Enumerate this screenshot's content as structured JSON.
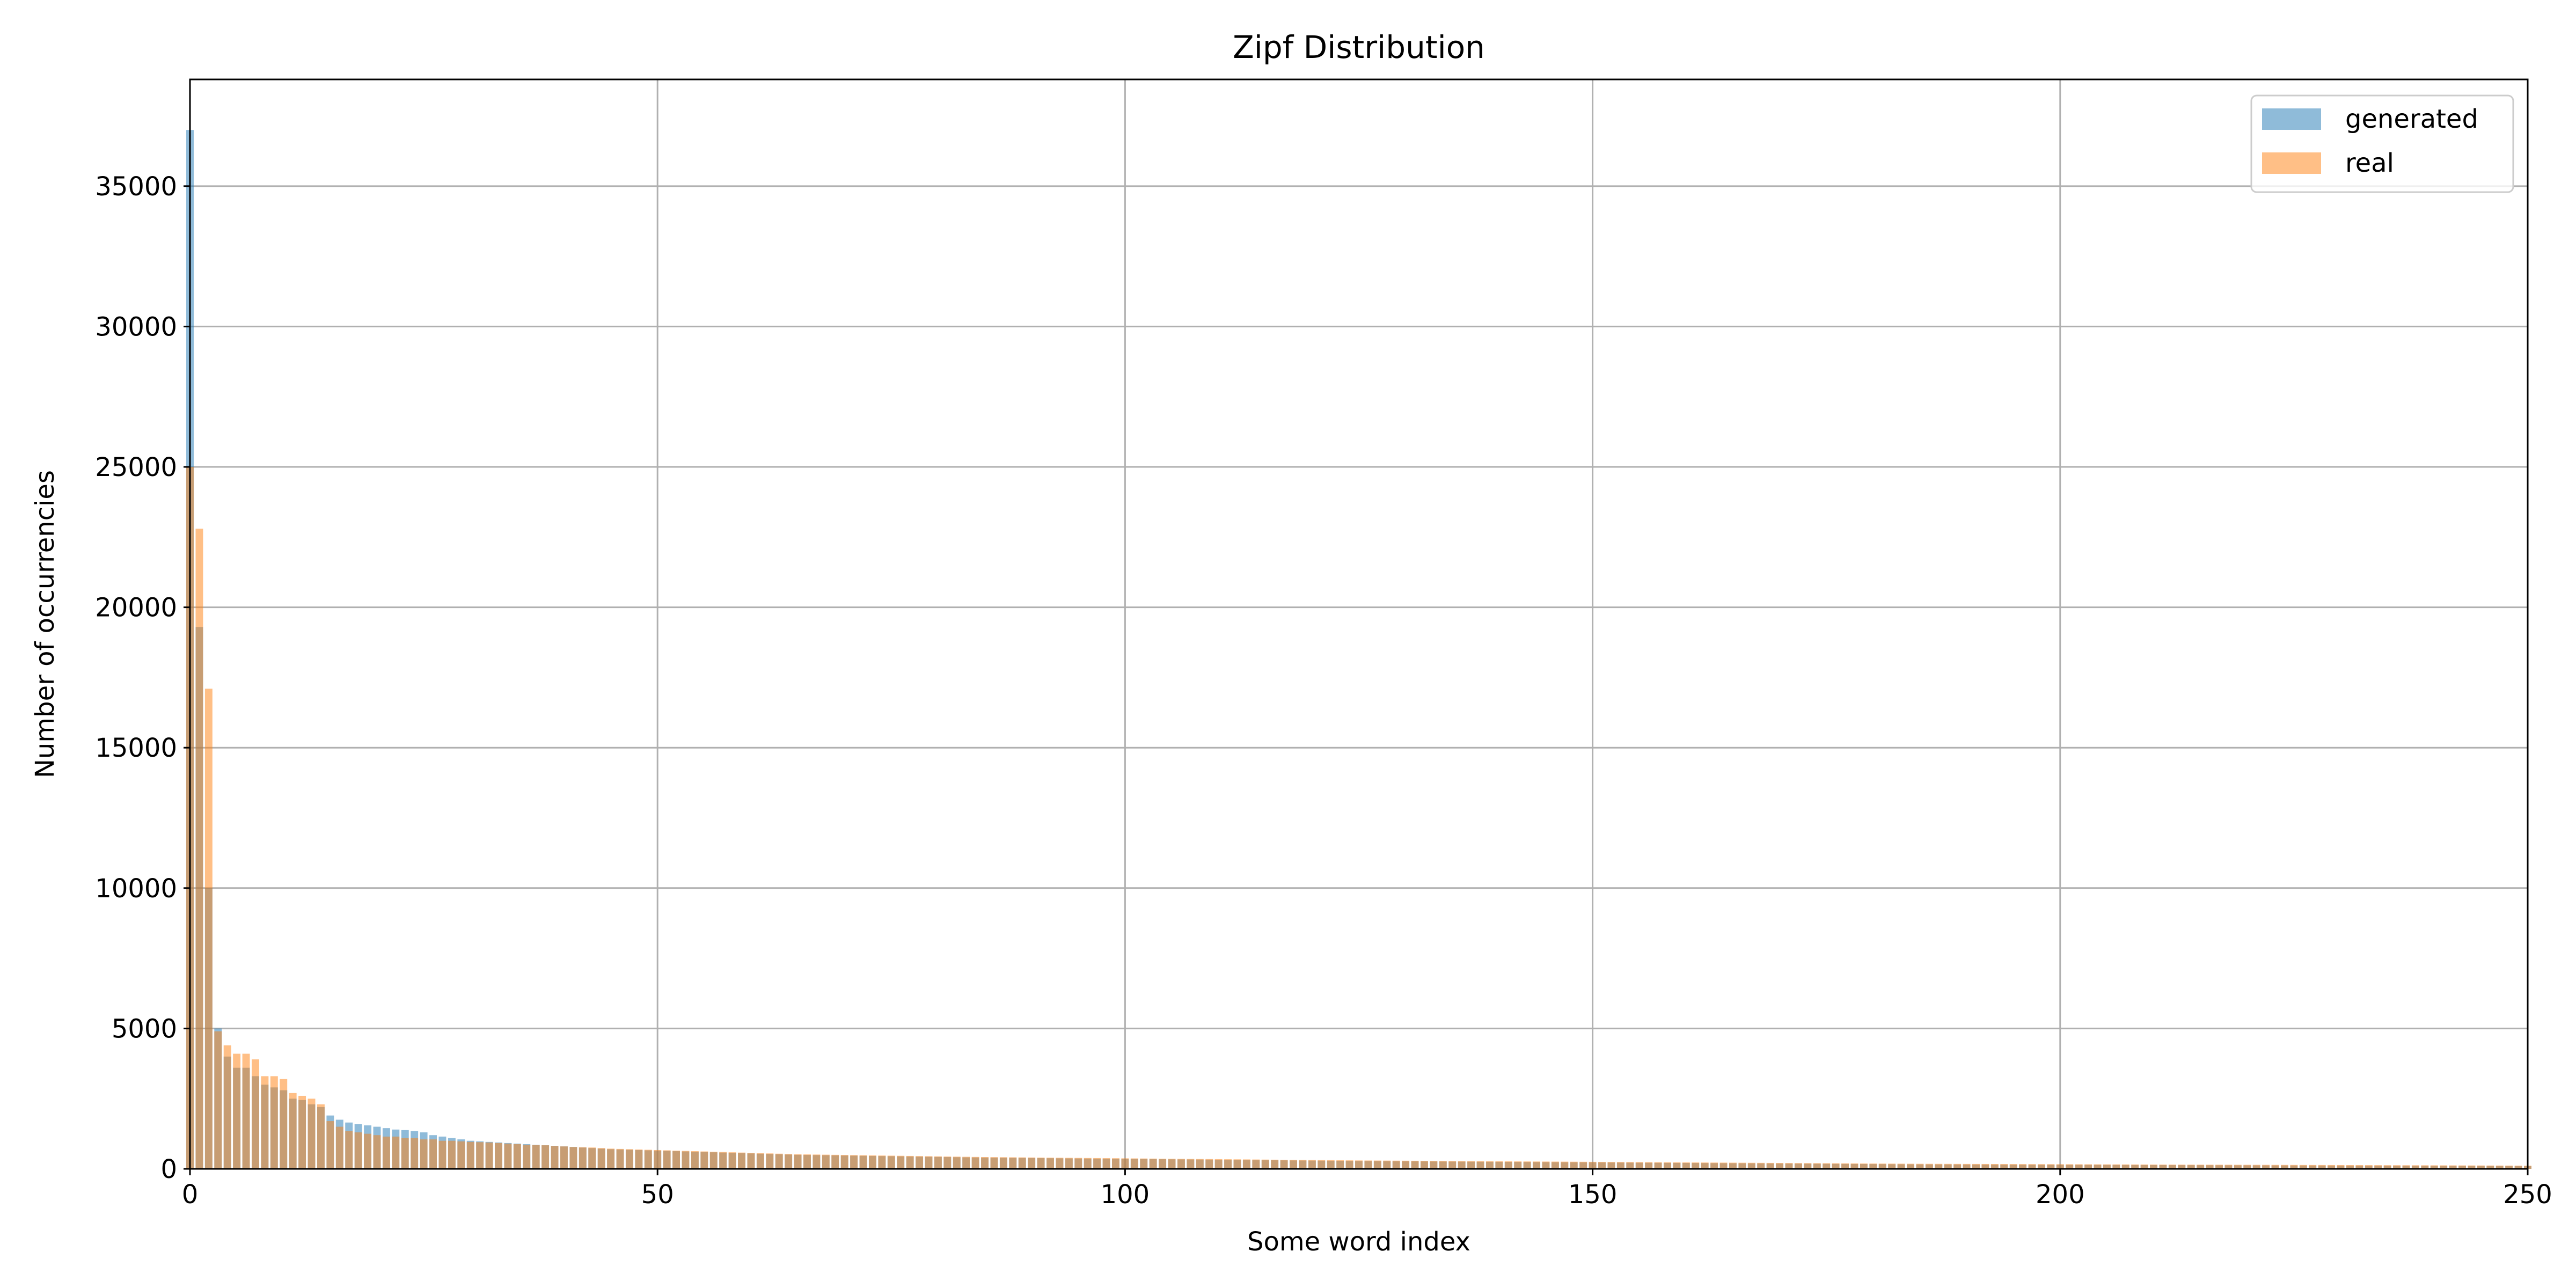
{
  "chart_data": {
    "type": "bar",
    "title": "Zipf Distribution",
    "xlabel": "Some word index",
    "ylabel": "Number of occurrencies",
    "xlim": [
      0,
      250
    ],
    "ylim": [
      0,
      38800
    ],
    "xticks": [
      0,
      50,
      100,
      150,
      200,
      250
    ],
    "yticks": [
      0,
      5000,
      10000,
      15000,
      20000,
      25000,
      30000,
      35000
    ],
    "grid": true,
    "legend_position": "top-right",
    "series": [
      {
        "name": "generated",
        "color": "#1f77b4",
        "opacity": 0.5,
        "values": [
          37000,
          19300,
          10000,
          5000,
          4000,
          3600,
          3600,
          3300,
          3000,
          2900,
          2800,
          2500,
          2450,
          2300,
          2200,
          1900,
          1750,
          1650,
          1600,
          1550,
          1500,
          1450,
          1400,
          1380,
          1350,
          1300,
          1200,
          1150,
          1100,
          1050,
          1000,
          980,
          960,
          940,
          920,
          900,
          880,
          860,
          840,
          820,
          800,
          780,
          760,
          740,
          720,
          700,
          690,
          680,
          670,
          660,
          650,
          640,
          630,
          620,
          610,
          600,
          590,
          580,
          570,
          560,
          550,
          540,
          530,
          520,
          510,
          500,
          495,
          490,
          485,
          480,
          475,
          470,
          465,
          460,
          455,
          450,
          445,
          440,
          435,
          430,
          425,
          420,
          415,
          410,
          405,
          400,
          397,
          394,
          391,
          388,
          385,
          382,
          379,
          376,
          373,
          370,
          367,
          364,
          361,
          358,
          355,
          352,
          349,
          346,
          343,
          340,
          337,
          334,
          331,
          328,
          325,
          322,
          319,
          316,
          313,
          310,
          307,
          304,
          301,
          298,
          295,
          292,
          289,
          286,
          283,
          280,
          278,
          276,
          274,
          272,
          270,
          268,
          266,
          264,
          262,
          260,
          258,
          256,
          254,
          252,
          250,
          248,
          246,
          244,
          242,
          240,
          238,
          236,
          234,
          232,
          230,
          228,
          226,
          224,
          222,
          220,
          218,
          216,
          214,
          212,
          210,
          208,
          206,
          204,
          202,
          200,
          198,
          196,
          194,
          192,
          190,
          188,
          186,
          184,
          182,
          180,
          178,
          176,
          174,
          172,
          170,
          168,
          166,
          164,
          162,
          160,
          159,
          158,
          157,
          156,
          155,
          154,
          153,
          152,
          151,
          150,
          149,
          148,
          147,
          146,
          145,
          144,
          143,
          142,
          141,
          140,
          139,
          138,
          137,
          136,
          135,
          134,
          133,
          132,
          131,
          130,
          129,
          128,
          127,
          126,
          125,
          124,
          123,
          122,
          121,
          120,
          119,
          118,
          117,
          116,
          115,
          114,
          113,
          112,
          111,
          110,
          109,
          108,
          107,
          106,
          105,
          104,
          103,
          102,
          101,
          100,
          99,
          98,
          97,
          96,
          95
        ]
      },
      {
        "name": "real",
        "color": "#ff7f0e",
        "opacity": 0.5,
        "values": [
          25000,
          22800,
          17100,
          4900,
          4400,
          4100,
          4100,
          3900,
          3300,
          3300,
          3200,
          2700,
          2600,
          2500,
          2300,
          1700,
          1500,
          1350,
          1300,
          1250,
          1200,
          1150,
          1150,
          1100,
          1100,
          1050,
          1050,
          1000,
          1000,
          980,
          960,
          950,
          940,
          920,
          900,
          880,
          860,
          850,
          840,
          820,
          800,
          780,
          770,
          760,
          740,
          720,
          710,
          700,
          690,
          680,
          670,
          660,
          650,
          640,
          630,
          620,
          610,
          600,
          590,
          580,
          570,
          560,
          550,
          540,
          530,
          520,
          515,
          510,
          505,
          500,
          495,
          490,
          485,
          480,
          475,
          470,
          465,
          460,
          455,
          450,
          445,
          440,
          435,
          430,
          425,
          420,
          417,
          414,
          411,
          408,
          405,
          402,
          399,
          396,
          393,
          390,
          387,
          384,
          381,
          378,
          375,
          372,
          369,
          366,
          363,
          360,
          357,
          354,
          351,
          348,
          345,
          342,
          339,
          336,
          333,
          330,
          327,
          324,
          321,
          318,
          315,
          312,
          309,
          306,
          303,
          300,
          298,
          296,
          294,
          292,
          290,
          288,
          286,
          284,
          282,
          280,
          278,
          276,
          274,
          272,
          270,
          268,
          266,
          264,
          262,
          260,
          258,
          256,
          254,
          252,
          250,
          248,
          246,
          244,
          242,
          240,
          238,
          236,
          234,
          232,
          230,
          228,
          226,
          224,
          222,
          220,
          218,
          216,
          214,
          212,
          210,
          208,
          206,
          204,
          202,
          200,
          198,
          196,
          194,
          192,
          190,
          188,
          186,
          184,
          182,
          180,
          179,
          178,
          177,
          176,
          175,
          174,
          173,
          172,
          171,
          170,
          169,
          168,
          167,
          166,
          165,
          164,
          163,
          162,
          161,
          160,
          159,
          158,
          157,
          156,
          155,
          154,
          153,
          152,
          151,
          150,
          149,
          148,
          147,
          146,
          145,
          144,
          143,
          142,
          141,
          140,
          139,
          138,
          137,
          136,
          135,
          134,
          133,
          132,
          131,
          130,
          129,
          128,
          127,
          126,
          125,
          124,
          123,
          122,
          121,
          120,
          119,
          118,
          117,
          116,
          115
        ]
      }
    ]
  }
}
